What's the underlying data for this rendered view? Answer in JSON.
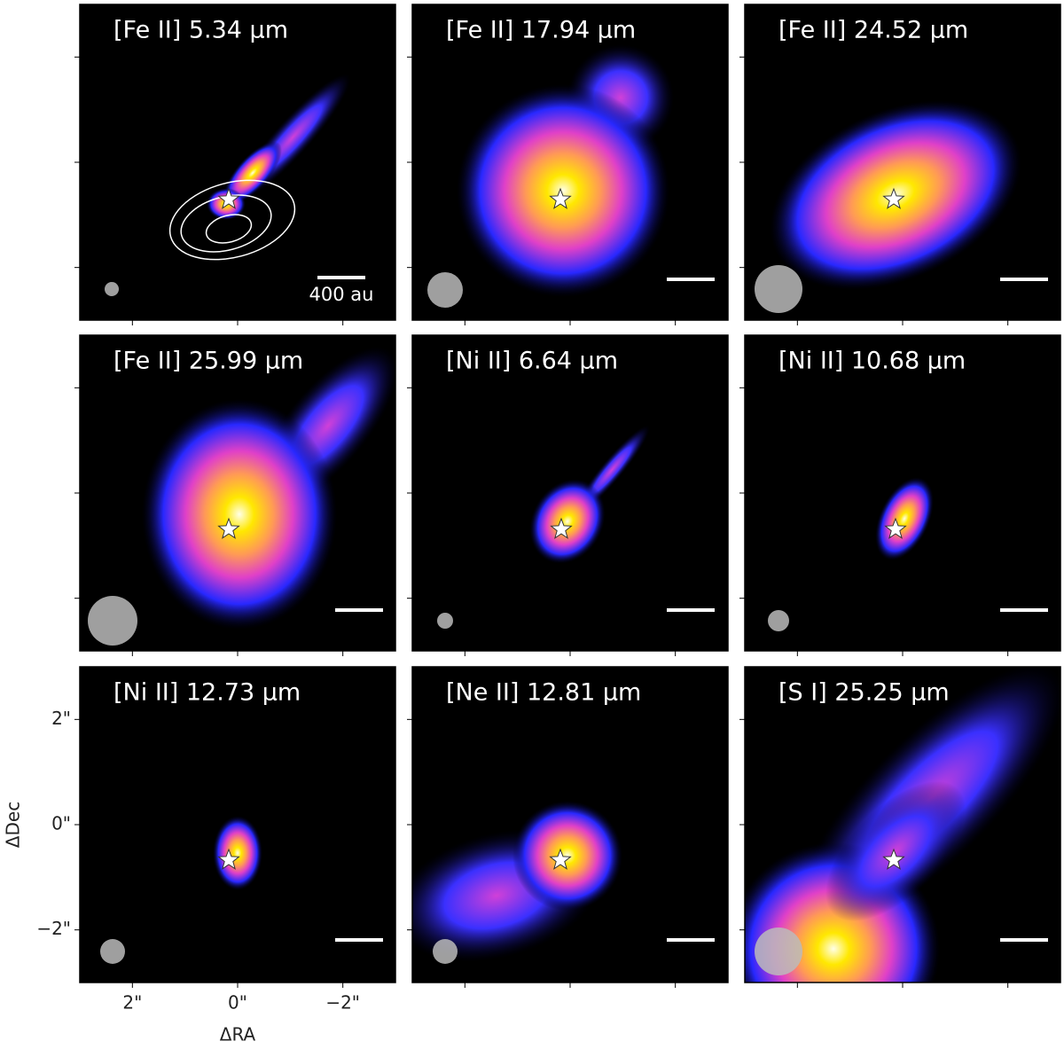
{
  "chart_data": [
    {
      "type": "image",
      "title": "[Fe II] 5.34 μm",
      "scale_bar_label": "400 au"
    },
    {
      "type": "image",
      "title": "[Fe II] 17.94 μm"
    },
    {
      "type": "image",
      "title": "[Fe II]  24.52 μm"
    },
    {
      "type": "image",
      "title": "[Fe II] 25.99 μm"
    },
    {
      "type": "image",
      "title": "[Ni II] 6.64 μm"
    },
    {
      "type": "image",
      "title": "[Ni II] 10.68 μm"
    },
    {
      "type": "image",
      "title": "[Ni II] 12.73 μm",
      "xlabel": "ΔRA",
      "ylabel": "ΔDec",
      "xlim": [
        3,
        -3
      ],
      "ylim": [
        -3,
        3
      ],
      "xticks": [
        {
          "value": 2,
          "label": "2\""
        },
        {
          "value": 0,
          "label": "0\""
        },
        {
          "value": -2,
          "label": "−2\""
        }
      ],
      "yticks": [
        {
          "value": 2,
          "label": "2\""
        },
        {
          "value": 0,
          "label": "0\""
        },
        {
          "value": -2,
          "label": "−2\""
        }
      ]
    },
    {
      "type": "image",
      "title": "[Ne II] 12.81 μm"
    },
    {
      "type": "image",
      "title": "[S I] 25.25 μm"
    }
  ]
}
